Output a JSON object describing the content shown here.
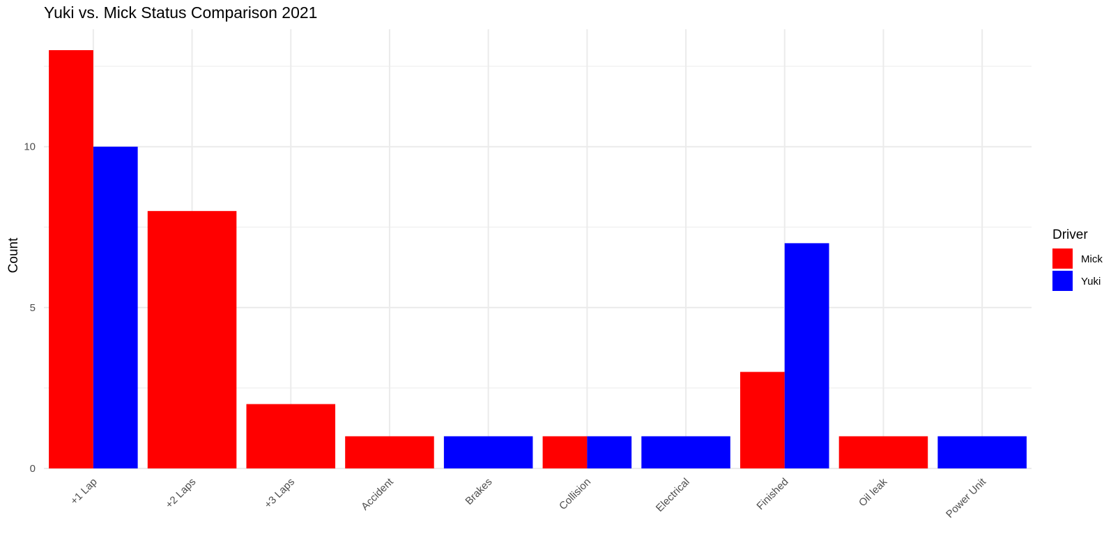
{
  "chart_data": {
    "type": "bar",
    "title": "Yuki vs. Mick Status Comparison 2021",
    "xlabel": "",
    "ylabel": "Count",
    "categories": [
      "+1 Lap",
      "+2 Laps",
      "+3 Laps",
      "Accident",
      "Brakes",
      "Collision",
      "Electrical",
      "Finished",
      "Oil leak",
      "Power Unit"
    ],
    "series": [
      {
        "name": "Mick",
        "color": "#FF0000",
        "values": [
          13,
          8,
          2,
          1,
          null,
          1,
          null,
          3,
          1,
          null
        ]
      },
      {
        "name": "Yuki",
        "color": "#0000FF",
        "values": [
          10,
          null,
          null,
          null,
          1,
          1,
          1,
          7,
          null,
          1
        ]
      }
    ],
    "ylim": [
      0,
      13.65
    ],
    "yticks": [
      0,
      5,
      10
    ],
    "ytick_labels": [
      "0",
      "5",
      "10"
    ],
    "grid": true,
    "legend": {
      "title": "Driver",
      "position": "right"
    }
  }
}
